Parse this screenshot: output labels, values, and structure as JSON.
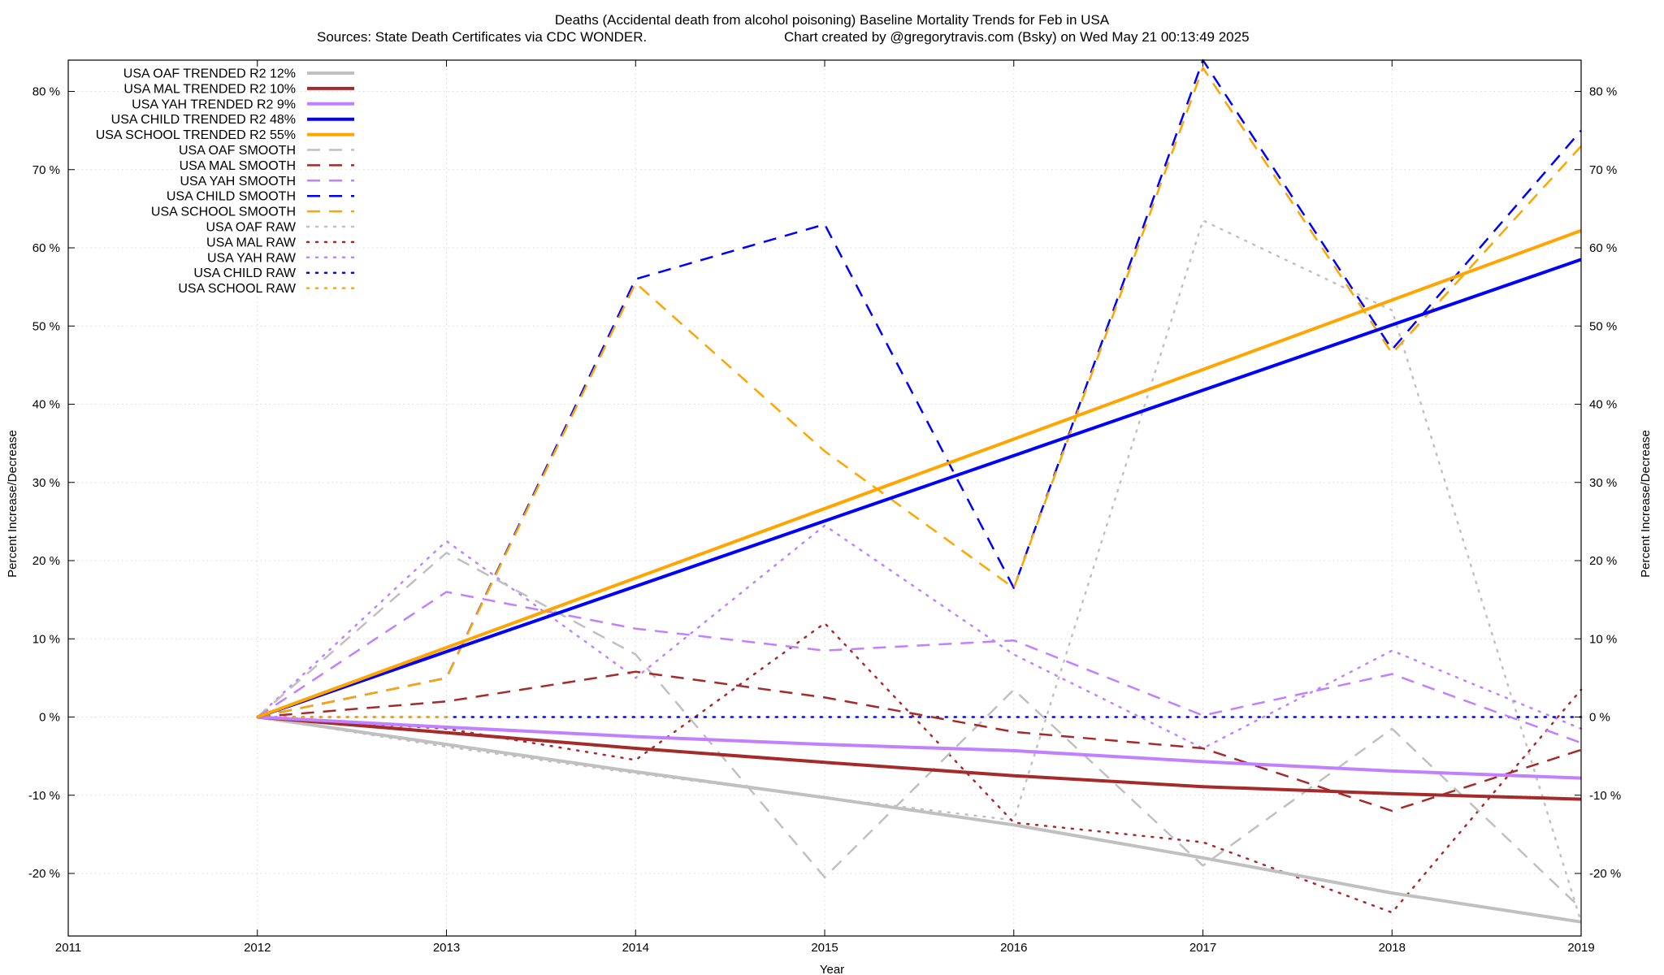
{
  "chart_data": {
    "type": "line",
    "title": "Deaths (Accidental death from alcohol poisoning)  Baseline Mortality Trends for Feb in USA",
    "subtitle_left": "Sources: State Death Certificates via CDC WONDER.",
    "subtitle_right": "Chart created by @gregorytravis.com (Bsky) on Wed May 21 00:13:49 2025",
    "xlabel": "Year",
    "ylabel": "Percent Increase/Decrease",
    "ylabel_right": "Percent Increase/Decrease",
    "xlim": [
      2011,
      2019
    ],
    "ylim": [
      -28,
      84
    ],
    "x_ticks": [
      2011,
      2012,
      2013,
      2014,
      2015,
      2016,
      2017,
      2018,
      2019
    ],
    "y_ticks": [
      -20,
      -10,
      0,
      10,
      20,
      30,
      40,
      50,
      60,
      70,
      80
    ],
    "y_tick_suffix": " %",
    "grid": true,
    "legend_position": "top-left",
    "series": [
      {
        "name": "USA OAF TRENDED R2  12%",
        "color": "#c0c0c0",
        "style": "solid",
        "width": 4,
        "x": [
          2012,
          2013,
          2014,
          2015,
          2016,
          2017,
          2018,
          2019
        ],
        "y": [
          0,
          -3.5,
          -7,
          -10.3,
          -13.8,
          -18,
          -22.5,
          -26.2
        ]
      },
      {
        "name": "USA MAL TRENDED R2  10%",
        "color": "#a52a2a",
        "style": "solid",
        "width": 4,
        "x": [
          2012,
          2013,
          2014,
          2015,
          2016,
          2017,
          2018,
          2019
        ],
        "y": [
          0,
          -2,
          -4,
          -5.8,
          -7.5,
          -8.9,
          -9.8,
          -10.5
        ]
      },
      {
        "name": "USA YAH TRENDED R2   9%",
        "color": "#c080ff",
        "style": "solid",
        "width": 4,
        "x": [
          2012,
          2013,
          2014,
          2015,
          2016,
          2017,
          2018,
          2019
        ],
        "y": [
          0,
          -1.3,
          -2.5,
          -3.5,
          -4.3,
          -5.7,
          -6.9,
          -7.8
        ]
      },
      {
        "name": "USA CHILD TRENDED R2  48%",
        "color": "#0000ff",
        "style": "solid",
        "width": 4,
        "x": [
          2012,
          2019
        ],
        "y": [
          0,
          58.5
        ]
      },
      {
        "name": "USA SCHOOL TRENDED R2  55%",
        "color": "#ffa500",
        "style": "solid",
        "width": 4,
        "x": [
          2012,
          2019
        ],
        "y": [
          0,
          62.2
        ]
      },
      {
        "name": "USA OAF SMOOTH",
        "color": "#c0c0c0",
        "style": "dashed",
        "width": 2.5,
        "x": [
          2012,
          2013,
          2014,
          2015,
          2016,
          2017,
          2018,
          2019
        ],
        "y": [
          0,
          21,
          8,
          -20.5,
          3.5,
          -19,
          -1.5,
          -24.5
        ]
      },
      {
        "name": "USA MAL SMOOTH",
        "color": "#a52a2a",
        "style": "dashed",
        "width": 2.5,
        "x": [
          2012,
          2013,
          2014,
          2015,
          2016,
          2017,
          2018,
          2019
        ],
        "y": [
          0,
          2,
          5.8,
          2.5,
          -1.9,
          -4,
          -12,
          -4.2
        ]
      },
      {
        "name": "USA YAH SMOOTH",
        "color": "#c080ff",
        "style": "dashed",
        "width": 2.5,
        "x": [
          2012,
          2013,
          2014,
          2015,
          2016,
          2017,
          2018,
          2019
        ],
        "y": [
          0,
          16,
          11.3,
          8.5,
          9.8,
          0.2,
          5.5,
          -3.3
        ]
      },
      {
        "name": "USA CHILD SMOOTH",
        "color": "#0000ff",
        "style": "dashed",
        "width": 2.5,
        "x": [
          2012,
          2013,
          2014,
          2015,
          2016,
          2017,
          2018,
          2019
        ],
        "y": [
          0,
          5,
          56,
          63,
          16.5,
          84,
          47,
          75
        ]
      },
      {
        "name": "USA SCHOOL SMOOTH",
        "color": "#ffa500",
        "style": "dashed",
        "width": 2.5,
        "x": [
          2012,
          2013,
          2014,
          2015,
          2016,
          2017,
          2018,
          2019
        ],
        "y": [
          0,
          5,
          55.5,
          34,
          16.5,
          83,
          46.5,
          73
        ]
      },
      {
        "name": "USA OAF RAW",
        "color": "#c0c0c0",
        "style": "dotted",
        "width": 2.5,
        "x": [
          2012,
          2013,
          2014,
          2015,
          2016,
          2017,
          2018,
          2019
        ],
        "y": [
          0,
          -3.8,
          -7.2,
          -10.3,
          -13.2,
          63.5,
          52,
          -26.2
        ]
      },
      {
        "name": "USA MAL RAW",
        "color": "#a52a2a",
        "style": "dotted",
        "width": 2.5,
        "x": [
          2012,
          2013,
          2014,
          2015,
          2016,
          2017,
          2018,
          2019
        ],
        "y": [
          0,
          -1.5,
          -5.5,
          12,
          -13.5,
          -16,
          -25,
          3.5
        ]
      },
      {
        "name": "USA YAH RAW",
        "color": "#c080ff",
        "style": "dotted",
        "width": 2.5,
        "x": [
          2012,
          2013,
          2014,
          2015,
          2016,
          2017,
          2018,
          2019
        ],
        "y": [
          0,
          22.5,
          5,
          24.5,
          8,
          -4,
          8.5,
          -1.5
        ]
      },
      {
        "name": "USA CHILD RAW",
        "color": "#0000ff",
        "style": "dotted",
        "width": 2.5,
        "x": [
          2012,
          2013,
          2014,
          2015,
          2016,
          2017,
          2018,
          2019
        ],
        "y": [
          0,
          0,
          0,
          0,
          0,
          0,
          0,
          0
        ]
      },
      {
        "name": "USA SCHOOL RAW",
        "color": "#ffa500",
        "style": "dotted",
        "width": 2.5,
        "x": [
          2012,
          2013
        ],
        "y": [
          0,
          0
        ]
      }
    ]
  }
}
